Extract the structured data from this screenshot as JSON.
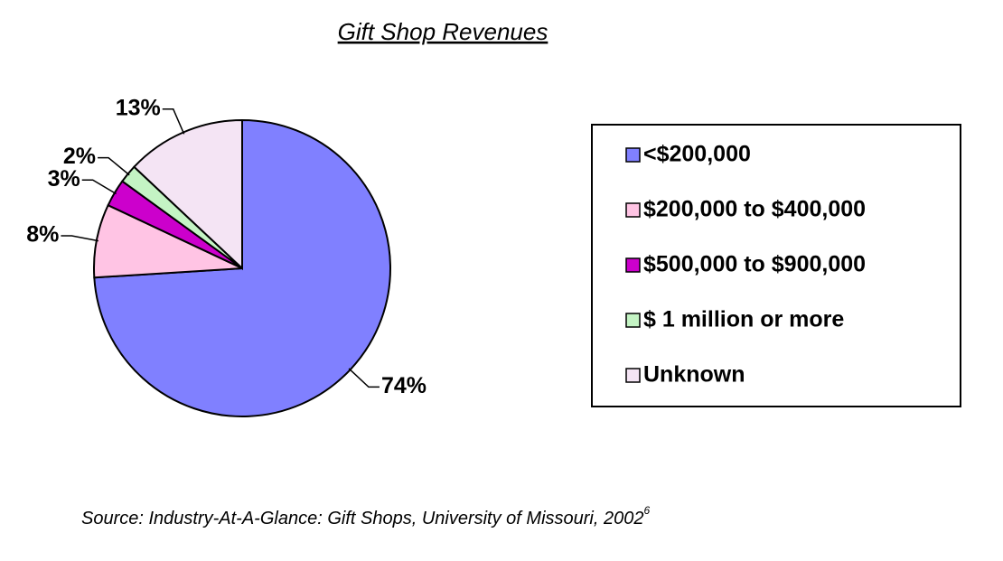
{
  "chart_data": {
    "type": "pie",
    "title": "Gift Shop Revenues",
    "categories": [
      "<$200,000",
      "$200,000 to $400,000",
      "$500,000 to $900,000",
      "$ 1 million or more",
      "Unknown"
    ],
    "values": [
      74,
      8,
      3,
      2,
      13
    ],
    "value_labels": [
      "74%",
      "8%",
      "3%",
      "2%",
      "13%"
    ],
    "colors": [
      "#8080ff",
      "#ffc4e4",
      "#cc00cc",
      "#c4f4c4",
      "#f4e4f4"
    ],
    "legend": "right",
    "source": "Source: Industry-At-A-Glance: Gift Shops, University of Missouri, 2002",
    "source_note": "6"
  }
}
